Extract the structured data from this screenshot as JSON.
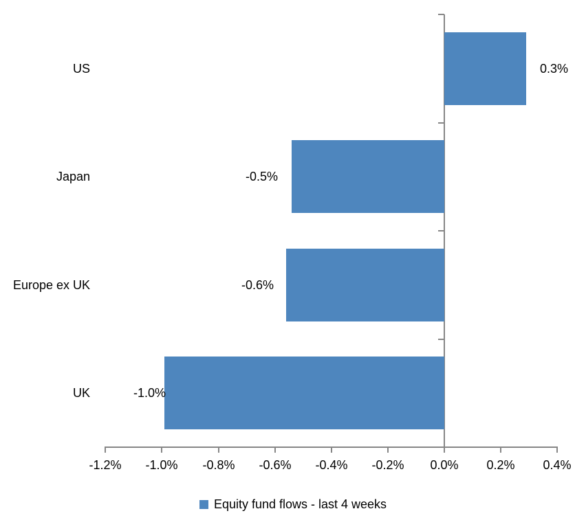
{
  "chart_data": {
    "type": "bar",
    "orientation": "horizontal",
    "title": "",
    "xlabel": "",
    "ylabel": "",
    "categories": [
      "US",
      "Japan",
      "Europe ex UK",
      "UK"
    ],
    "series": [
      {
        "name": "Equity fund flows - last 4 weeks",
        "values": [
          0.29,
          -0.54,
          -0.56,
          -0.99
        ],
        "labels": [
          "0.3%",
          "-0.5%",
          "-0.6%",
          "-1.0%"
        ]
      }
    ],
    "xlim": [
      -1.2,
      0.4
    ],
    "x_tick_values": [
      -1.2,
      -1.0,
      -0.8,
      -0.6,
      -0.4,
      -0.2,
      0.0,
      0.2,
      0.4
    ],
    "x_ticks": [
      "-1.2%",
      "-1.0%",
      "-0.8%",
      "-0.6%",
      "-0.4%",
      "-0.2%",
      "0.0%",
      "0.2%",
      "0.4%"
    ],
    "grid": "off",
    "legend": {
      "position": "bottom",
      "entries": [
        "Equity fund flows - last 4 weeks"
      ]
    },
    "colors": {
      "bar": "#4E86BE",
      "axis": "#868686",
      "text": "#000000",
      "background": "#FFFFFF"
    }
  }
}
